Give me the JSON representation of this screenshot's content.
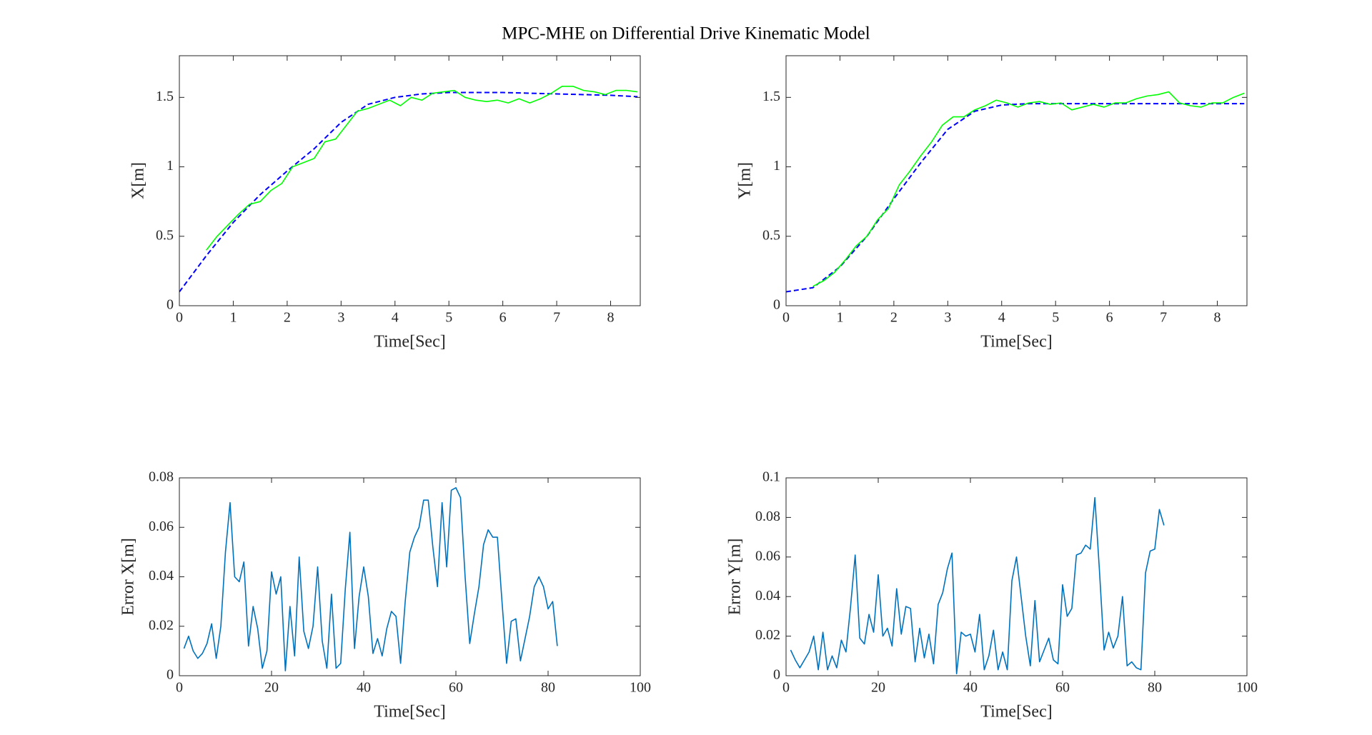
{
  "title": "MPC-MHE on Differential Drive Kinematic Model",
  "chart_data": [
    {
      "type": "line",
      "xlabel": "Time[Sec]",
      "ylabel": "X[m]",
      "xlim": [
        0,
        8.55
      ],
      "ylim": [
        0,
        1.8
      ],
      "xticks": [
        0,
        1,
        2,
        3,
        4,
        5,
        6,
        7,
        8
      ],
      "yticks": [
        0,
        0.5,
        1,
        1.5
      ],
      "series": [
        {
          "color": "#0000ff",
          "linestyle": "dashed",
          "x": [
            0,
            0.5,
            1,
            1.5,
            2,
            2.5,
            3,
            3.5,
            4,
            4.5,
            5,
            5.5,
            6,
            6.5,
            7,
            7.5,
            8,
            8.5
          ],
          "values": [
            0.1,
            0.36,
            0.6,
            0.8,
            0.97,
            1.13,
            1.32,
            1.45,
            1.5,
            1.525,
            1.535,
            1.535,
            1.535,
            1.53,
            1.525,
            1.52,
            1.515,
            1.505
          ]
        },
        {
          "color": "#00ff00",
          "linestyle": "solid",
          "x": [
            0.5,
            0.7,
            0.9,
            1.1,
            1.3,
            1.5,
            1.7,
            1.9,
            2.1,
            2.3,
            2.5,
            2.7,
            2.9,
            3.1,
            3.3,
            3.5,
            3.7,
            3.9,
            4.1,
            4.3,
            4.5,
            4.7,
            4.9,
            5.1,
            5.3,
            5.5,
            5.7,
            5.9,
            6.1,
            6.3,
            6.5,
            6.7,
            6.9,
            7.1,
            7.3,
            7.5,
            7.7,
            7.9,
            8.1,
            8.3,
            8.5
          ],
          "values": [
            0.4,
            0.5,
            0.58,
            0.66,
            0.73,
            0.75,
            0.83,
            0.88,
            1.0,
            1.03,
            1.06,
            1.18,
            1.2,
            1.3,
            1.4,
            1.42,
            1.45,
            1.48,
            1.44,
            1.5,
            1.48,
            1.53,
            1.54,
            1.55,
            1.5,
            1.48,
            1.47,
            1.48,
            1.46,
            1.49,
            1.46,
            1.49,
            1.53,
            1.58,
            1.58,
            1.55,
            1.54,
            1.52,
            1.55,
            1.55,
            1.54
          ]
        }
      ]
    },
    {
      "type": "line",
      "xlabel": "Time[Sec]",
      "ylabel": "Y[m]",
      "xlim": [
        0,
        8.55
      ],
      "ylim": [
        0,
        1.8
      ],
      "xticks": [
        0,
        1,
        2,
        3,
        4,
        5,
        6,
        7,
        8
      ],
      "yticks": [
        0,
        0.5,
        1,
        1.5
      ],
      "series": [
        {
          "color": "#0000ff",
          "linestyle": "dashed",
          "x": [
            0,
            0.5,
            1,
            1.5,
            2,
            2.5,
            3,
            3.5,
            4,
            4.5,
            5,
            5.5,
            6,
            6.5,
            7,
            7.5,
            8,
            8.5
          ],
          "values": [
            0.1,
            0.13,
            0.28,
            0.5,
            0.77,
            1.03,
            1.27,
            1.4,
            1.445,
            1.455,
            1.455,
            1.455,
            1.455,
            1.455,
            1.455,
            1.455,
            1.455,
            1.455
          ]
        },
        {
          "color": "#00ff00",
          "linestyle": "solid",
          "x": [
            0.5,
            0.7,
            0.9,
            1.1,
            1.3,
            1.5,
            1.7,
            1.9,
            2.1,
            2.3,
            2.5,
            2.7,
            2.9,
            3.1,
            3.3,
            3.5,
            3.7,
            3.9,
            4.1,
            4.3,
            4.5,
            4.7,
            4.9,
            5.1,
            5.3,
            5.5,
            5.7,
            5.9,
            6.1,
            6.3,
            6.5,
            6.7,
            6.9,
            7.1,
            7.3,
            7.5,
            7.7,
            7.9,
            8.1,
            8.3,
            8.5
          ],
          "values": [
            0.14,
            0.18,
            0.24,
            0.33,
            0.43,
            0.5,
            0.62,
            0.7,
            0.87,
            0.97,
            1.08,
            1.18,
            1.3,
            1.36,
            1.36,
            1.41,
            1.44,
            1.48,
            1.46,
            1.43,
            1.46,
            1.47,
            1.45,
            1.46,
            1.41,
            1.43,
            1.45,
            1.43,
            1.46,
            1.46,
            1.49,
            1.51,
            1.52,
            1.54,
            1.46,
            1.44,
            1.43,
            1.46,
            1.46,
            1.5,
            1.53
          ]
        }
      ]
    },
    {
      "type": "line",
      "xlabel": "Time[Sec]",
      "ylabel": "Error X[m]",
      "xlim": [
        0,
        100
      ],
      "ylim": [
        0,
        0.08
      ],
      "xticks": [
        0,
        20,
        40,
        60,
        80,
        100
      ],
      "yticks": [
        0,
        0.02,
        0.04,
        0.06,
        0.08
      ],
      "series": [
        {
          "color": "#0072bd",
          "linestyle": "solid",
          "x": [
            1,
            2,
            3,
            4,
            5,
            6,
            7,
            8,
            9,
            10,
            11,
            12,
            13,
            14,
            15,
            16,
            17,
            18,
            19,
            20,
            21,
            22,
            23,
            24,
            25,
            26,
            27,
            28,
            29,
            30,
            31,
            32,
            33,
            34,
            35,
            36,
            37,
            38,
            39,
            40,
            41,
            42,
            43,
            44,
            45,
            46,
            47,
            48,
            49,
            50,
            51,
            52,
            53,
            54,
            55,
            56,
            57,
            58,
            59,
            60,
            61,
            62,
            63,
            64,
            65,
            66,
            67,
            68,
            69,
            70,
            71,
            72,
            73,
            74,
            75,
            76,
            77,
            78,
            79,
            80,
            81,
            82
          ],
          "values": [
            0.011,
            0.016,
            0.01,
            0.007,
            0.009,
            0.013,
            0.021,
            0.007,
            0.02,
            0.05,
            0.07,
            0.04,
            0.038,
            0.046,
            0.012,
            0.028,
            0.019,
            0.003,
            0.01,
            0.042,
            0.033,
            0.04,
            0.002,
            0.028,
            0.008,
            0.048,
            0.018,
            0.011,
            0.02,
            0.044,
            0.014,
            0.003,
            0.033,
            0.003,
            0.005,
            0.035,
            0.058,
            0.011,
            0.032,
            0.044,
            0.032,
            0.009,
            0.015,
            0.008,
            0.019,
            0.026,
            0.024,
            0.005,
            0.03,
            0.05,
            0.056,
            0.06,
            0.071,
            0.071,
            0.052,
            0.036,
            0.07,
            0.044,
            0.075,
            0.076,
            0.072,
            0.04,
            0.013,
            0.025,
            0.036,
            0.053,
            0.059,
            0.056,
            0.056,
            0.03,
            0.005,
            0.022,
            0.023,
            0.006,
            0.015,
            0.024,
            0.036,
            0.04,
            0.036,
            0.027,
            0.03,
            0.012
          ]
        }
      ]
    },
    {
      "type": "line",
      "xlabel": "Time[Sec]",
      "ylabel": "Error Y[m]",
      "xlim": [
        0,
        100
      ],
      "ylim": [
        0,
        0.1
      ],
      "xticks": [
        0,
        20,
        40,
        60,
        80,
        100
      ],
      "yticks": [
        0,
        0.02,
        0.04,
        0.06,
        0.08,
        0.1
      ],
      "series": [
        {
          "color": "#0072bd",
          "linestyle": "solid",
          "x": [
            1,
            2,
            3,
            4,
            5,
            6,
            7,
            8,
            9,
            10,
            11,
            12,
            13,
            14,
            15,
            16,
            17,
            18,
            19,
            20,
            21,
            22,
            23,
            24,
            25,
            26,
            27,
            28,
            29,
            30,
            31,
            32,
            33,
            34,
            35,
            36,
            37,
            38,
            39,
            40,
            41,
            42,
            43,
            44,
            45,
            46,
            47,
            48,
            49,
            50,
            51,
            52,
            53,
            54,
            55,
            56,
            57,
            58,
            59,
            60,
            61,
            62,
            63,
            64,
            65,
            66,
            67,
            68,
            69,
            70,
            71,
            72,
            73,
            74,
            75,
            76,
            77,
            78,
            79,
            80,
            81,
            82
          ],
          "values": [
            0.013,
            0.008,
            0.004,
            0.008,
            0.012,
            0.02,
            0.003,
            0.022,
            0.003,
            0.01,
            0.004,
            0.018,
            0.012,
            0.035,
            0.061,
            0.019,
            0.016,
            0.031,
            0.022,
            0.051,
            0.02,
            0.024,
            0.015,
            0.044,
            0.021,
            0.035,
            0.034,
            0.007,
            0.024,
            0.009,
            0.021,
            0.006,
            0.036,
            0.042,
            0.054,
            0.062,
            0.001,
            0.022,
            0.02,
            0.021,
            0.012,
            0.031,
            0.003,
            0.01,
            0.023,
            0.003,
            0.012,
            0.003,
            0.048,
            0.06,
            0.04,
            0.02,
            0.005,
            0.038,
            0.007,
            0.013,
            0.019,
            0.008,
            0.006,
            0.046,
            0.03,
            0.034,
            0.061,
            0.062,
            0.066,
            0.064,
            0.09,
            0.053,
            0.013,
            0.022,
            0.014,
            0.02,
            0.04,
            0.005,
            0.007,
            0.004,
            0.003,
            0.052,
            0.063,
            0.064,
            0.084,
            0.076
          ]
        }
      ]
    }
  ]
}
